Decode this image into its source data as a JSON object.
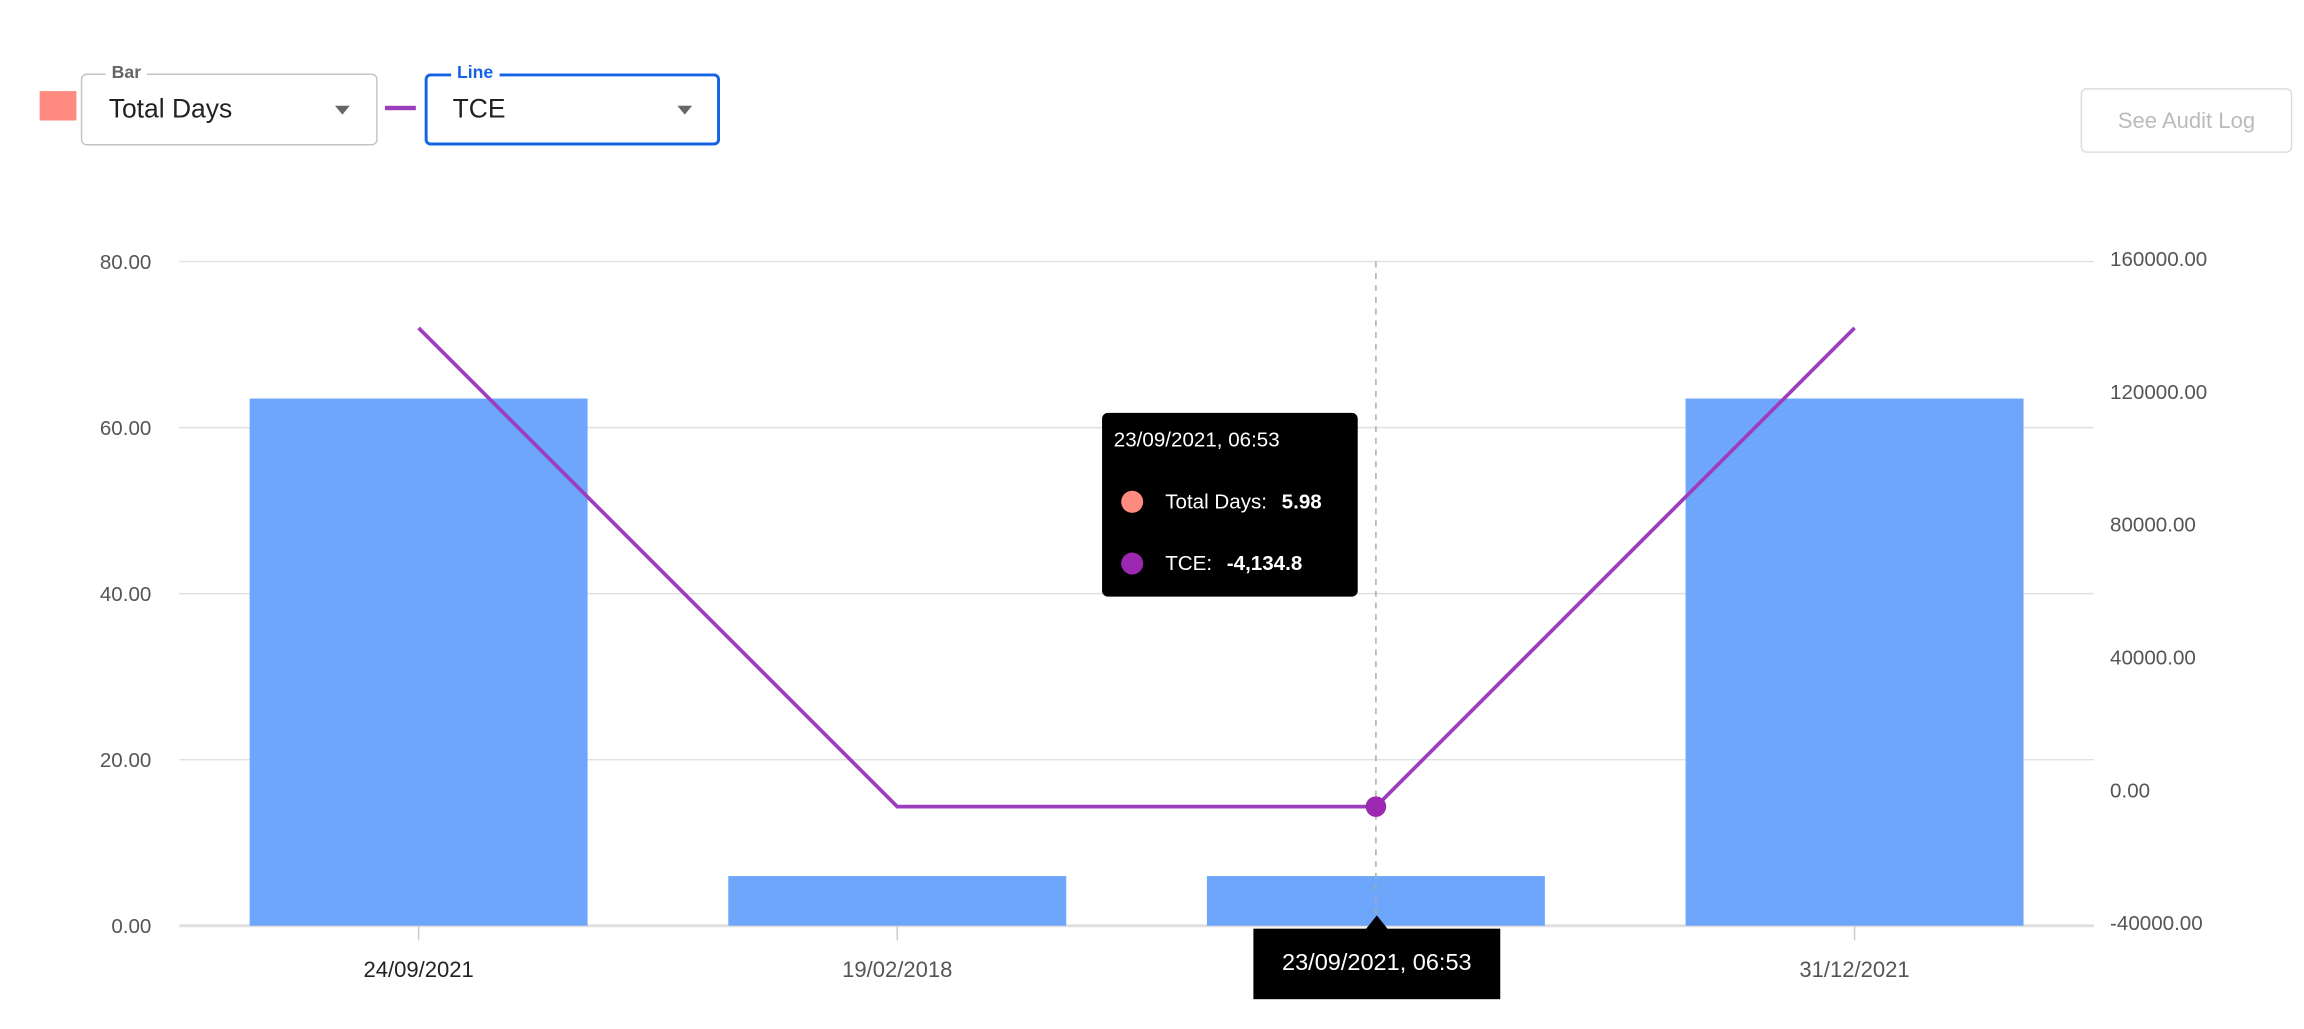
{
  "controls": {
    "bar_label": "Bar",
    "bar_value": "Total Days",
    "line_label": "Line",
    "line_value": "TCE",
    "audit_button": "See Audit Log"
  },
  "colors": {
    "bar_swatch": "#FF8A80",
    "bar": "#6EA6FC",
    "line": "#9C3DBD",
    "accent": "#1463E6"
  },
  "tooltip": {
    "title": "23/09/2021, 06:53",
    "rows": [
      {
        "label": "Total Days:",
        "value": "5.98",
        "color": "#FF8A80"
      },
      {
        "label": "TCE:",
        "value": "-4,134.8",
        "color": "#9C27B0"
      }
    ]
  },
  "x_highlight_label": "23/09/2021, 06:53",
  "chart_data": {
    "type": "bar",
    "categories": [
      "24/09/2021",
      "19/02/2018",
      "23/09/2021, 06:53",
      "31/12/2021"
    ],
    "x_tick_labels": [
      "24/09/2021",
      "19/02/2018",
      "",
      "31/12/2021"
    ],
    "series": [
      {
        "name": "Total Days",
        "type": "bar",
        "axis": "left",
        "values": [
          63.5,
          5.98,
          5.98,
          63.5
        ]
      },
      {
        "name": "TCE",
        "type": "line",
        "axis": "right",
        "values": [
          140000,
          -4134.8,
          -4134.8,
          140000
        ]
      }
    ],
    "y_left": {
      "range": [
        0,
        80
      ],
      "ticks": [
        "0.00",
        "20.00",
        "40.00",
        "60.00",
        "80.00"
      ]
    },
    "y_right": {
      "range": [
        -40000,
        160000
      ],
      "ticks": [
        "-40000.00",
        "0.00",
        "40000.00",
        "80000.00",
        "120000.00",
        "160000.00"
      ]
    },
    "grid": true,
    "highlighted_index": 2
  }
}
